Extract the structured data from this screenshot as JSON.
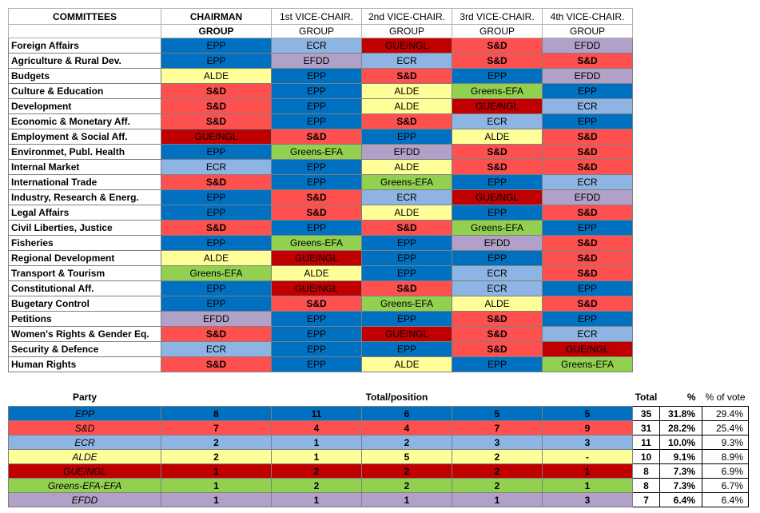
{
  "colors": {
    "EPP": "#0070c0",
    "S&D": "#ff5050",
    "ECR": "#8db4e2",
    "ALDE": "#ffff99",
    "GUE/NGL": "#c00000",
    "Greens-EFA": "#92d050",
    "EFDD": "#b1a0c7"
  },
  "committees_table": {
    "title": "COMMITTEES",
    "columns": [
      "CHAIRMAN",
      "1st VICE-CHAIR.",
      "2nd VICE-CHAIR.",
      "3rd VICE-CHAIR.",
      "4th VICE-CHAIR."
    ],
    "sublabel": "GROUP",
    "rows": [
      {
        "name": "Foreign Affairs",
        "groups": [
          "EPP",
          "ECR",
          "GUE/NGL",
          "S&D",
          "EFDD"
        ]
      },
      {
        "name": "Agriculture & Rural Dev.",
        "groups": [
          "EPP",
          "EFDD",
          "ECR",
          "S&D",
          "S&D"
        ]
      },
      {
        "name": "Budgets",
        "groups": [
          "ALDE",
          "EPP",
          "S&D",
          "EPP",
          "EFDD"
        ]
      },
      {
        "name": "Culture & Education",
        "groups": [
          "S&D",
          "EPP",
          "ALDE",
          "Greens-EFA",
          "EPP"
        ]
      },
      {
        "name": "Development",
        "groups": [
          "S&D",
          "EPP",
          "ALDE",
          "GUE/NGL",
          "ECR"
        ]
      },
      {
        "name": "Economic & Monetary Aff.",
        "groups": [
          "S&D",
          "EPP",
          "S&D",
          "ECR",
          "EPP"
        ]
      },
      {
        "name": "Employment & Social Aff.",
        "groups": [
          "GUE/NGL",
          "S&D",
          "EPP",
          "ALDE",
          "S&D"
        ]
      },
      {
        "name": "Environmet, Publ. Health",
        "groups": [
          "EPP",
          "Greens-EFA",
          "EFDD",
          "S&D",
          "S&D"
        ]
      },
      {
        "name": "Internal Market",
        "groups": [
          "ECR",
          "EPP",
          "ALDE",
          "S&D",
          "S&D"
        ]
      },
      {
        "name": "International Trade",
        "groups": [
          "S&D",
          "EPP",
          "Greens-EFA",
          "EPP",
          "ECR"
        ]
      },
      {
        "name": "Industry, Research & Energ.",
        "groups": [
          "EPP",
          "S&D",
          "ECR",
          "GUE/NGL",
          "EFDD"
        ]
      },
      {
        "name": "Legal Affairs",
        "groups": [
          "EPP",
          "S&D",
          "ALDE",
          "EPP",
          "S&D"
        ]
      },
      {
        "name": "Civil Liberties, Justice",
        "groups": [
          "S&D",
          "EPP",
          "S&D",
          "Greens-EFA",
          "EPP"
        ]
      },
      {
        "name": "Fisheries",
        "groups": [
          "EPP",
          "Greens-EFA",
          "EPP",
          "EFDD",
          "S&D"
        ]
      },
      {
        "name": "Regional Development",
        "groups": [
          "ALDE",
          "GUE/NGL",
          "EPP",
          "EPP",
          "S&D"
        ]
      },
      {
        "name": "Transport & Tourism",
        "groups": [
          "Greens-EFA",
          "ALDE",
          "EPP",
          "ECR",
          "S&D"
        ]
      },
      {
        "name": "Constitutional Aff.",
        "groups": [
          "EPP",
          "GUE/NGL",
          "S&D",
          "ECR",
          "EPP"
        ]
      },
      {
        "name": "Bugetary Control",
        "groups": [
          "EPP",
          "S&D",
          "Greens-EFA",
          "ALDE",
          "S&D"
        ]
      },
      {
        "name": "Petitions",
        "groups": [
          "EFDD",
          "EPP",
          "EPP",
          "S&D",
          "EPP"
        ]
      },
      {
        "name": "Women's Rights & Gender Eq.",
        "groups": [
          "S&D",
          "EPP",
          "GUE/NGL",
          "S&D",
          "ECR"
        ]
      },
      {
        "name": "Security & Defence",
        "groups": [
          "ECR",
          "EPP",
          "EPP",
          "S&D",
          "GUE/NGL"
        ]
      },
      {
        "name": "Human Rights",
        "groups": [
          "S&D",
          "EPP",
          "ALDE",
          "EPP",
          "Greens-EFA"
        ]
      }
    ]
  },
  "party_table": {
    "party_header": "Party",
    "position_header": "Total/position",
    "total_header": "Total",
    "pct_header": "%",
    "vote_header": "% of vote",
    "rows": [
      {
        "party": "EPP",
        "color_key": "EPP",
        "counts": [
          "8",
          "11",
          "6",
          "5",
          "5"
        ],
        "total": "35",
        "pct": "31.8%",
        "vote": "29.4%"
      },
      {
        "party": "S&D",
        "color_key": "S&D",
        "counts": [
          "7",
          "4",
          "4",
          "7",
          "9"
        ],
        "total": "31",
        "pct": "28.2%",
        "vote": "25.4%"
      },
      {
        "party": "ECR",
        "color_key": "ECR",
        "counts": [
          "2",
          "1",
          "2",
          "3",
          "3"
        ],
        "total": "11",
        "pct": "10.0%",
        "vote": "9.3%"
      },
      {
        "party": "ALDE",
        "color_key": "ALDE",
        "counts": [
          "2",
          "1",
          "5",
          "2",
          "-"
        ],
        "total": "10",
        "pct": "9.1%",
        "vote": "8.9%"
      },
      {
        "party": "GUE/NGL",
        "color_key": "GUE/NGL",
        "counts": [
          "1",
          "2",
          "2",
          "2",
          "1"
        ],
        "total": "8",
        "pct": "7.3%",
        "vote": "6.9%"
      },
      {
        "party": "Greens-EFA-EFA",
        "color_key": "Greens-EFA",
        "counts": [
          "1",
          "2",
          "2",
          "2",
          "1"
        ],
        "total": "8",
        "pct": "7.3%",
        "vote": "6.7%"
      },
      {
        "party": "EFDD",
        "color_key": "EFDD",
        "counts": [
          "1",
          "1",
          "1",
          "1",
          "3"
        ],
        "total": "7",
        "pct": "6.4%",
        "vote": "6.4%"
      }
    ]
  }
}
